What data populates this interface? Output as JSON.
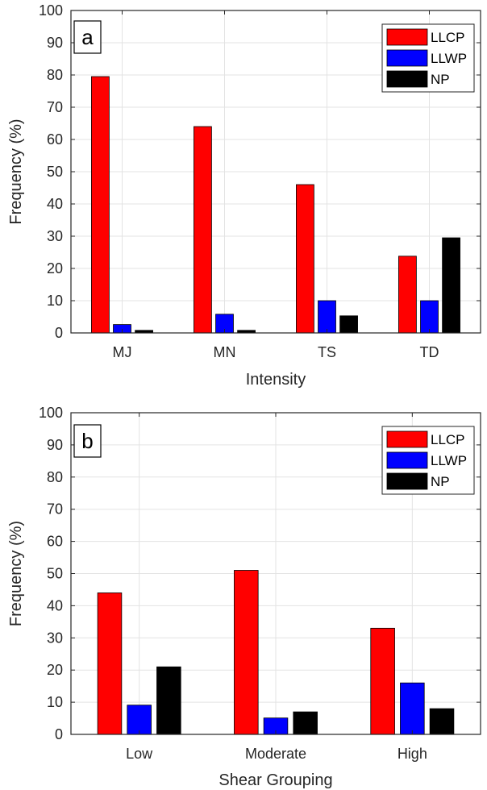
{
  "chart_data": [
    {
      "panel_label": "a",
      "type": "bar",
      "xlabel": "Intensity",
      "ylabel": "Frequency (%)",
      "ylim": [
        0,
        100
      ],
      "yticks": [
        0,
        10,
        20,
        30,
        40,
        50,
        60,
        70,
        80,
        90,
        100
      ],
      "grid": true,
      "legend_position": "top-right",
      "categories": [
        "MJ",
        "MN",
        "TS",
        "TD"
      ],
      "series": [
        {
          "name": "LLCP",
          "color": "#ff0000",
          "values": [
            79.5,
            64,
            46,
            23.8
          ]
        },
        {
          "name": "LLWP",
          "color": "#0000ff",
          "values": [
            2.6,
            5.8,
            10,
            10
          ]
        },
        {
          "name": "NP",
          "color": "#000000",
          "values": [
            0.8,
            0.8,
            5.3,
            29.5
          ]
        }
      ]
    },
    {
      "panel_label": "b",
      "type": "bar",
      "xlabel": "Shear Grouping",
      "ylabel": "Frequency (%)",
      "ylim": [
        0,
        100
      ],
      "yticks": [
        0,
        10,
        20,
        30,
        40,
        50,
        60,
        70,
        80,
        90,
        100
      ],
      "grid": true,
      "legend_position": "top-right",
      "categories": [
        "Low",
        "Moderate",
        "High"
      ],
      "series": [
        {
          "name": "LLCP",
          "color": "#ff0000",
          "values": [
            44,
            51,
            33
          ]
        },
        {
          "name": "LLWP",
          "color": "#0000ff",
          "values": [
            9.1,
            5.1,
            16
          ]
        },
        {
          "name": "NP",
          "color": "#000000",
          "values": [
            21,
            7,
            8
          ]
        }
      ]
    }
  ]
}
